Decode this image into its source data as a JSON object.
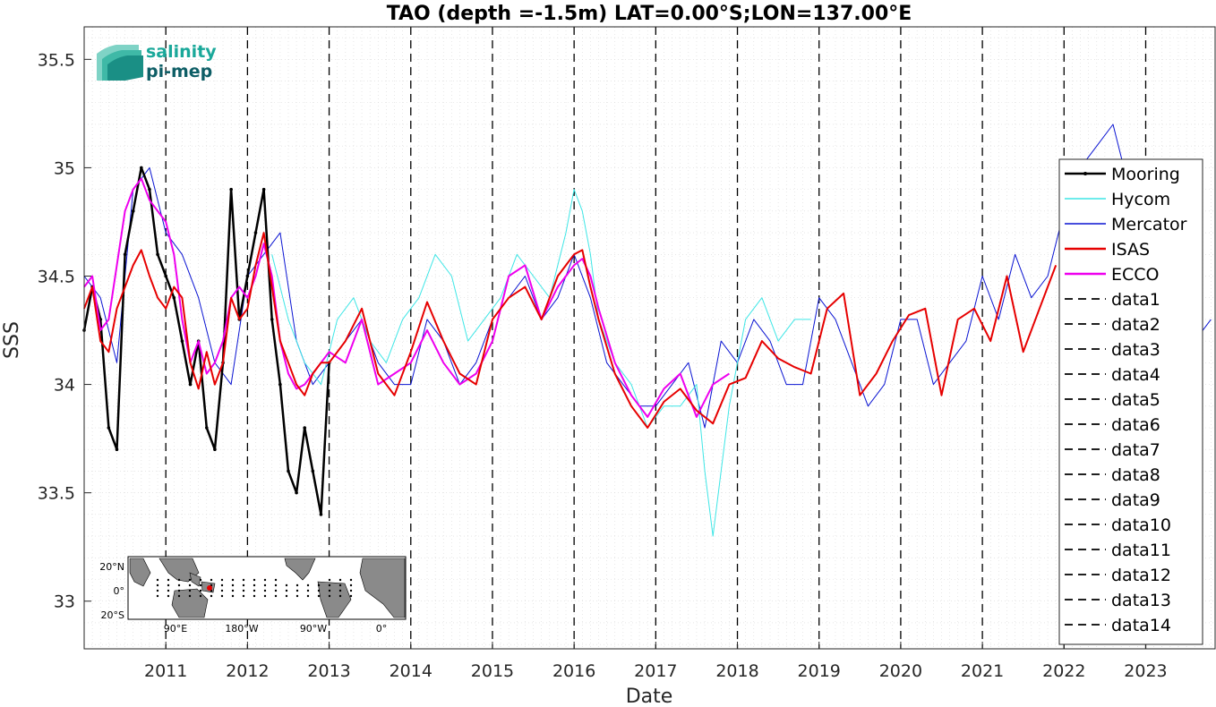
{
  "logo": {
    "line1": "salinity",
    "line2": "pi-mep"
  },
  "chart_data": {
    "type": "line",
    "title": "TAO (depth =-1.5m) LAT=0.00°S;LON=137.00°E",
    "xlabel": "Date",
    "ylabel": "SSS",
    "xlim": [
      2010.0,
      2023.85
    ],
    "ylim": [
      32.78,
      35.65
    ],
    "xticks": [
      2011,
      2012,
      2013,
      2014,
      2015,
      2016,
      2017,
      2018,
      2019,
      2020,
      2021,
      2022,
      2023
    ],
    "yticks": [
      33,
      33.5,
      34,
      34.5,
      35,
      35.5
    ],
    "ytick_labels": [
      "33",
      "33.5",
      "34",
      "34.5",
      "35",
      "35.5"
    ],
    "grid": true,
    "legend_position": "right",
    "vertical_dashed_lines": [
      2011,
      2012,
      2013,
      2014,
      2015,
      2016,
      2017,
      2018,
      2019,
      2020,
      2021,
      2022,
      2023
    ],
    "series": [
      {
        "name": "Mooring",
        "color": "#000000",
        "style": "line-dot",
        "width": 2.5,
        "x": [
          2010.0,
          2010.1,
          2010.2,
          2010.3,
          2010.4,
          2010.5,
          2010.6,
          2010.7,
          2010.8,
          2010.9,
          2011.0,
          2011.1,
          2011.2,
          2011.3,
          2011.4,
          2011.5,
          2011.6,
          2011.7,
          2011.8,
          2011.9,
          2012.0,
          2012.1,
          2012.2,
          2012.3,
          2012.4,
          2012.5,
          2012.6,
          2012.7,
          2012.8,
          2012.9,
          2013.0
        ],
        "y": [
          34.25,
          34.45,
          34.3,
          33.8,
          33.7,
          34.6,
          34.8,
          35.0,
          34.9,
          34.6,
          34.5,
          34.4,
          34.2,
          34.0,
          34.2,
          33.8,
          33.7,
          34.1,
          34.9,
          34.3,
          34.5,
          34.7,
          34.9,
          34.3,
          34.0,
          33.6,
          33.5,
          33.8,
          33.6,
          33.4,
          34.1
        ]
      },
      {
        "name": "Hycom",
        "color": "#3ee6e6",
        "style": "line",
        "width": 1,
        "x": [
          2012.3,
          2012.5,
          2012.7,
          2012.9,
          2013.1,
          2013.3,
          2013.5,
          2013.7,
          2013.9,
          2014.1,
          2014.3,
          2014.5,
          2014.7,
          2014.9,
          2015.1,
          2015.3,
          2015.5,
          2015.7,
          2015.9,
          2016.0,
          2016.1,
          2016.2,
          2016.3,
          2016.5,
          2016.7,
          2016.9,
          2017.1,
          2017.3,
          2017.5,
          2017.6,
          2017.7,
          2017.9,
          2018.1,
          2018.3,
          2018.5,
          2018.7,
          2018.9
        ],
        "y": [
          34.6,
          34.3,
          34.1,
          34.0,
          34.3,
          34.4,
          34.2,
          34.1,
          34.3,
          34.4,
          34.6,
          34.5,
          34.2,
          34.3,
          34.4,
          34.6,
          34.5,
          34.4,
          34.7,
          34.9,
          34.8,
          34.6,
          34.3,
          34.1,
          34.0,
          33.8,
          33.9,
          33.9,
          34.0,
          33.6,
          33.3,
          33.9,
          34.3,
          34.4,
          34.2,
          34.3,
          34.3
        ]
      },
      {
        "name": "Mercator",
        "color": "#0a14d2",
        "style": "line",
        "width": 1,
        "x": [
          2010.0,
          2010.2,
          2010.4,
          2010.6,
          2010.8,
          2011.0,
          2011.2,
          2011.4,
          2011.6,
          2011.8,
          2012.0,
          2012.2,
          2012.4,
          2012.6,
          2012.8,
          2013.0,
          2013.2,
          2013.4,
          2013.6,
          2013.8,
          2014.0,
          2014.2,
          2014.4,
          2014.6,
          2014.8,
          2015.0,
          2015.2,
          2015.4,
          2015.6,
          2015.8,
          2016.0,
          2016.2,
          2016.4,
          2016.6,
          2016.8,
          2017.0,
          2017.2,
          2017.4,
          2017.6,
          2017.8,
          2018.0,
          2018.2,
          2018.4,
          2018.6,
          2018.8,
          2019.0,
          2019.2,
          2019.4,
          2019.6,
          2019.8,
          2020.0,
          2020.2,
          2020.4,
          2020.6,
          2020.8,
          2021.0,
          2021.2,
          2021.4,
          2021.6,
          2021.8,
          2022.0,
          2022.2,
          2022.4,
          2022.6,
          2022.8,
          2023.0,
          2023.2,
          2023.4,
          2023.6,
          2023.8
        ],
        "y": [
          34.5,
          34.4,
          34.1,
          34.9,
          35.0,
          34.7,
          34.6,
          34.4,
          34.1,
          34.0,
          34.5,
          34.6,
          34.7,
          34.2,
          34.0,
          34.1,
          34.2,
          34.3,
          34.1,
          34.0,
          34.0,
          34.3,
          34.2,
          34.0,
          34.1,
          34.3,
          34.4,
          34.5,
          34.3,
          34.4,
          34.6,
          34.4,
          34.1,
          34.0,
          33.9,
          33.9,
          34.0,
          34.1,
          33.8,
          34.2,
          34.1,
          34.3,
          34.2,
          34.0,
          34.0,
          34.4,
          34.3,
          34.1,
          33.9,
          34.0,
          34.3,
          34.3,
          34.0,
          34.1,
          34.2,
          34.5,
          34.3,
          34.6,
          34.4,
          34.5,
          34.8,
          35.0,
          35.1,
          35.2,
          34.9,
          34.7,
          34.6,
          34.4,
          34.2,
          34.3
        ]
      },
      {
        "name": "ISAS",
        "color": "#e60000",
        "style": "line",
        "width": 2,
        "x": [
          2010.0,
          2010.1,
          2010.2,
          2010.3,
          2010.4,
          2010.5,
          2010.6,
          2010.7,
          2010.8,
          2010.9,
          2011.0,
          2011.1,
          2011.2,
          2011.3,
          2011.4,
          2011.5,
          2011.6,
          2011.7,
          2011.8,
          2011.9,
          2012.0,
          2012.1,
          2012.2,
          2012.3,
          2012.4,
          2012.5,
          2012.6,
          2012.7,
          2012.8,
          2012.9,
          2013.0,
          2013.2,
          2013.4,
          2013.6,
          2013.8,
          2014.0,
          2014.2,
          2014.4,
          2014.6,
          2014.8,
          2015.0,
          2015.2,
          2015.4,
          2015.6,
          2015.8,
          2016.0,
          2016.1,
          2016.2,
          2016.3,
          2016.5,
          2016.7,
          2016.9,
          2017.1,
          2017.3,
          2017.5,
          2017.7,
          2017.9,
          2018.1,
          2018.3,
          2018.5,
          2018.7,
          2018.9,
          2019.1,
          2019.3,
          2019.5,
          2019.7,
          2019.9,
          2020.1,
          2020.3,
          2020.5,
          2020.7,
          2020.9,
          2021.1,
          2021.3,
          2021.5,
          2021.7,
          2021.9
        ],
        "y": [
          34.35,
          34.45,
          34.2,
          34.15,
          34.35,
          34.45,
          34.55,
          34.62,
          34.5,
          34.4,
          34.35,
          34.45,
          34.4,
          34.1,
          33.98,
          34.15,
          34.0,
          34.1,
          34.4,
          34.3,
          34.35,
          34.55,
          34.7,
          34.45,
          34.2,
          34.1,
          34.0,
          33.95,
          34.05,
          34.1,
          34.1,
          34.2,
          34.35,
          34.05,
          33.95,
          34.15,
          34.38,
          34.2,
          34.05,
          34.0,
          34.3,
          34.4,
          34.45,
          34.3,
          34.5,
          34.6,
          34.62,
          34.45,
          34.3,
          34.05,
          33.9,
          33.8,
          33.92,
          33.98,
          33.88,
          33.82,
          34.0,
          34.03,
          34.2,
          34.12,
          34.08,
          34.05,
          34.35,
          34.42,
          33.95,
          34.05,
          34.2,
          34.32,
          34.35,
          33.95,
          34.3,
          34.35,
          34.2,
          34.5,
          34.15,
          34.35,
          34.55
        ]
      },
      {
        "name": "ECCO",
        "color": "#ee00ee",
        "style": "line",
        "width": 2,
        "x": [
          2010.0,
          2010.1,
          2010.2,
          2010.3,
          2010.4,
          2010.5,
          2010.6,
          2010.7,
          2010.8,
          2010.9,
          2011.0,
          2011.1,
          2011.2,
          2011.3,
          2011.4,
          2011.5,
          2011.6,
          2011.7,
          2011.8,
          2011.9,
          2012.0,
          2012.1,
          2012.2,
          2012.3,
          2012.4,
          2012.5,
          2012.6,
          2012.7,
          2012.8,
          2012.9,
          2013.0,
          2013.2,
          2013.4,
          2013.6,
          2013.8,
          2014.0,
          2014.2,
          2014.4,
          2014.6,
          2014.8,
          2015.0,
          2015.2,
          2015.4,
          2015.6,
          2015.8,
          2016.0,
          2016.1,
          2016.2,
          2016.3,
          2016.5,
          2016.7,
          2016.9,
          2017.1,
          2017.3,
          2017.5,
          2017.7,
          2017.9
        ],
        "y": [
          34.45,
          34.5,
          34.25,
          34.3,
          34.55,
          34.8,
          34.9,
          34.95,
          34.85,
          34.8,
          34.75,
          34.6,
          34.3,
          34.1,
          34.2,
          34.05,
          34.1,
          34.2,
          34.4,
          34.45,
          34.4,
          34.5,
          34.65,
          34.5,
          34.2,
          34.05,
          33.98,
          34.0,
          34.05,
          34.1,
          34.15,
          34.1,
          34.3,
          34.0,
          34.05,
          34.1,
          34.25,
          34.1,
          34.0,
          34.05,
          34.2,
          34.5,
          34.55,
          34.3,
          34.45,
          34.55,
          34.58,
          34.5,
          34.35,
          34.1,
          33.95,
          33.85,
          33.98,
          34.05,
          33.85,
          34.0,
          34.05
        ]
      }
    ],
    "legend_extra": [
      "data1",
      "data2",
      "data3",
      "data4",
      "data5",
      "data6",
      "data7",
      "data8",
      "data9",
      "data10",
      "data11",
      "data12",
      "data13",
      "data14"
    ],
    "inset_map": {
      "yticks": [
        "20°N",
        "0°",
        "20°S"
      ],
      "xticks": [
        "90°E",
        "180°W",
        "90°W",
        "0°"
      ],
      "marker_color": "#e60000"
    }
  }
}
